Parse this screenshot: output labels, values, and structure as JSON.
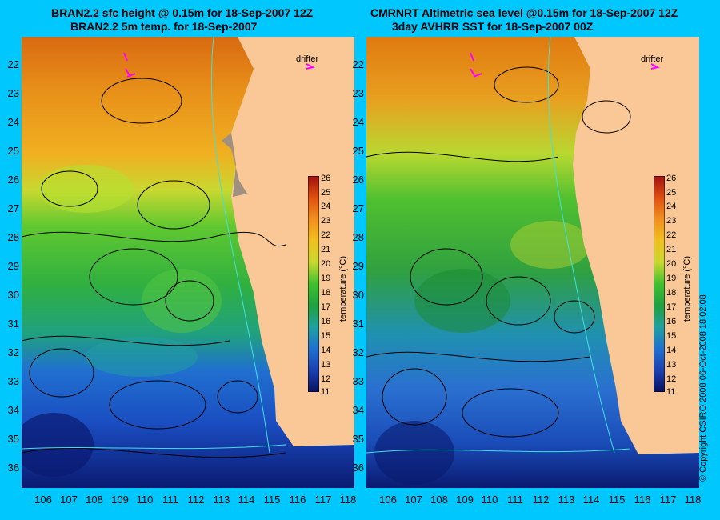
{
  "titles": {
    "left_line1": "BRAN2.2 sfc height @ 0.15m for 18-Sep-2007 12Z",
    "left_line2": "BRAN2.2 5m temp. for 18-Sep-2007",
    "right_line1": "CMRNRT Altimetric sea level  @0.15m  for 18-Sep-2007 12Z",
    "right_line2": "3day AVHRR SST for 18-Sep-2007 00Z"
  },
  "axes": {
    "latitudes": [
      "22",
      "23",
      "24",
      "25",
      "26",
      "27",
      "28",
      "29",
      "30",
      "31",
      "32",
      "33",
      "34",
      "35",
      "36"
    ],
    "longitudes": [
      "106",
      "107",
      "108",
      "109",
      "110",
      "111",
      "112",
      "113",
      "114",
      "115",
      "116",
      "117",
      "118"
    ]
  },
  "colorbar": {
    "title": "temperature (°C)",
    "ticks": [
      "26",
      "25",
      "24",
      "23",
      "22",
      "21",
      "20",
      "19",
      "18",
      "17",
      "16",
      "15",
      "14",
      "13",
      "12",
      "11"
    ]
  },
  "legend": {
    "drifter_label": "drifter"
  },
  "copyright": "© Copyright CSIRO 2008    06-Oct-2008 18:02:08",
  "colors": {
    "background": "#00c8ff",
    "land": "#f9c896",
    "warm": "#e08a10",
    "mid": "#30c030",
    "cool": "#1a60d0",
    "cold": "#0a1a80",
    "contour": "#000000",
    "bathymetry": "#40e0e0",
    "drifter": "#ff00ff"
  }
}
